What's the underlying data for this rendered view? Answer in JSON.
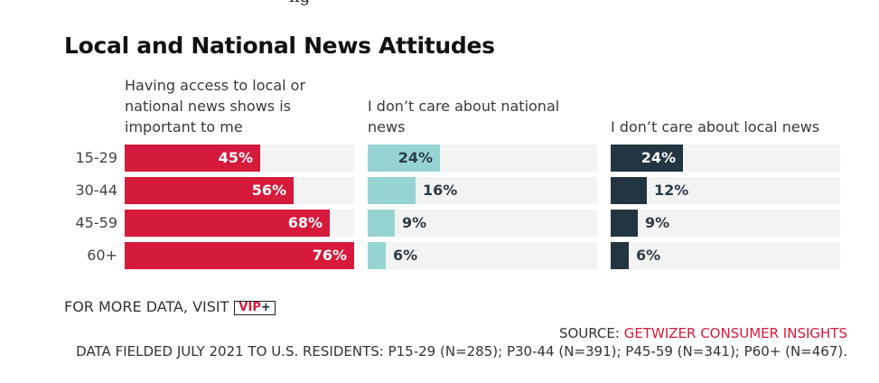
{
  "header": {
    "cut_text": "ng"
  },
  "chart_data": {
    "type": "bar",
    "title": "Local and National News Attitudes",
    "categories": [
      "15-29",
      "30-44",
      "45-59",
      "60+"
    ],
    "series": [
      {
        "name": "Having access to local or national news shows is important to me",
        "values": [
          45,
          56,
          68,
          76
        ],
        "labels": [
          "45%",
          "56%",
          "68%",
          "76%"
        ],
        "color": "#d51a3c",
        "label_color": "#ffffff",
        "label_inside": true
      },
      {
        "name": "I don’t care about national news",
        "values": [
          24,
          16,
          9,
          6
        ],
        "labels": [
          "24%",
          "16%",
          "9%",
          "6%"
        ],
        "color": "#96d4d2",
        "label_color": "#2c3b47",
        "label_inside_min": 20
      },
      {
        "name": "I don’t care about local news",
        "values": [
          24,
          12,
          9,
          6
        ],
        "labels": [
          "24%",
          "12%",
          "9%",
          "6%"
        ],
        "color": "#233540",
        "label_color_inside": "#ffffff",
        "label_color_outside": "#2c3b47",
        "label_inside_min": 20
      }
    ],
    "xlim": [
      0,
      76
    ],
    "grid": false
  },
  "footer": {
    "more_prefix": "FOR MORE DATA, VISIT",
    "badge_vip": "VIP",
    "badge_plus": "+",
    "source_prefix": "SOURCE:",
    "source_brand": "GETWIZER CONSUMER INSIGHTS",
    "fielded": "DATA FIELDED JULY 2021 TO U.S. RESIDENTS: P15-29 (N=285); P30-44 (N=391); P45-59 (N=341); P60+ (N=467)."
  }
}
